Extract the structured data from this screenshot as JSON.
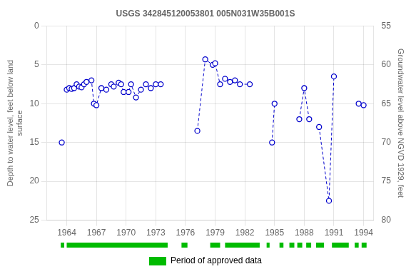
{
  "chart_data": {
    "type": "scatter",
    "title": "USGS 342845120053801 005N031W35B001S",
    "y_label": "Depth to water level, feet below land\nsurface",
    "y2_label": "Groundwater level above NGVD 1929, feet",
    "series": [
      {
        "x": [
          1963.5
        ],
        "values": [
          15.0
        ],
        "color": "#0000cc",
        "marker": "open_circle",
        "line_style": "dashed"
      },
      {
        "x": [
          1964.0,
          1964.25,
          1964.5,
          1964.75,
          1965.0,
          1965.25,
          1965.5,
          1965.75,
          1966.0,
          1966.5,
          1966.75,
          1967.0,
          1967.5,
          1968.0,
          1968.5,
          1968.75,
          1969.25,
          1969.5,
          1969.75,
          1970.25,
          1970.5,
          1971.0,
          1971.5,
          1972.0,
          1972.5,
          1973.0,
          1973.5
        ],
        "values": [
          8.2,
          8.0,
          8.1,
          8.0,
          7.5,
          7.8,
          7.9,
          7.5,
          7.2,
          7.0,
          10.0,
          10.2,
          8.0,
          8.2,
          7.5,
          7.8,
          7.3,
          7.5,
          8.5,
          8.5,
          7.5,
          9.2,
          8.2,
          7.5,
          8.0,
          7.5,
          7.5
        ],
        "color": "#0000cc",
        "marker": "open_circle",
        "line_style": "dashed"
      },
      {
        "x": [
          1977.2,
          1978.0,
          1978.75,
          1979.0,
          1979.5,
          1980.0,
          1980.5,
          1981.0,
          1981.5,
          1982.5
        ],
        "values": [
          13.5,
          4.3,
          5.0,
          4.8,
          7.5,
          6.8,
          7.2,
          7.0,
          7.5,
          7.5
        ],
        "color": "#0000cc",
        "marker": "open_circle",
        "line_style": "dashed"
      },
      {
        "x": [
          1984.75,
          1985.0
        ],
        "values": [
          15.0,
          10.0
        ],
        "color": "#0000cc",
        "marker": "open_circle",
        "line_style": "dashed"
      },
      {
        "x": [
          1987.5,
          1988.0,
          1988.5
        ],
        "values": [
          12.0,
          8.0,
          12.0
        ],
        "color": "#0000cc",
        "marker": "open_circle",
        "line_style": "dashed"
      },
      {
        "x": [
          1989.5,
          1990.5,
          1991.0
        ],
        "values": [
          13.0,
          22.5,
          6.5
        ],
        "color": "#0000cc",
        "marker": "open_circle",
        "line_style": "dashed"
      },
      {
        "x": [
          1993.5,
          1994.0
        ],
        "values": [
          10.0,
          10.2
        ],
        "color": "#0000cc",
        "marker": "open_circle",
        "line_style": "dashed"
      }
    ],
    "periods": {
      "name": "Period of approved data",
      "color": "#00bb00",
      "ranges": [
        [
          1963.4,
          1963.75
        ],
        [
          1964.0,
          1974.2
        ],
        [
          1975.6,
          1976.2
        ],
        [
          1978.5,
          1979.5
        ],
        [
          1980.0,
          1983.5
        ],
        [
          1984.2,
          1984.5
        ],
        [
          1985.5,
          1985.9
        ],
        [
          1986.5,
          1987.0
        ],
        [
          1987.3,
          1987.8
        ],
        [
          1988.2,
          1988.7
        ],
        [
          1989.2,
          1990.0
        ],
        [
          1990.8,
          1992.5
        ],
        [
          1993.1,
          1993.5
        ],
        [
          1993.8,
          1994.3
        ]
      ]
    },
    "xlim": [
      1962,
      1995
    ],
    "xticks": [
      1964,
      1967,
      1970,
      1973,
      1976,
      1979,
      1982,
      1985,
      1988,
      1991,
      1994
    ],
    "ylim": [
      25,
      0
    ],
    "yticks": [
      0,
      5,
      10,
      15,
      20,
      25
    ],
    "y2lim": [
      80,
      55
    ],
    "y2ticks": [
      55,
      60,
      65,
      70,
      75,
      80
    ],
    "grid": true,
    "legend": "bottom"
  }
}
